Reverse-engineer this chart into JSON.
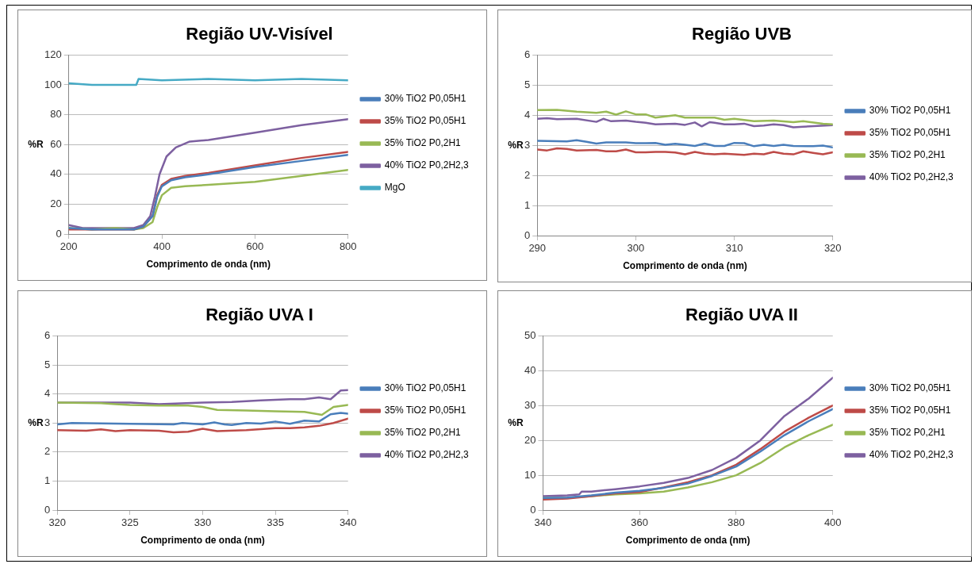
{
  "chart_data": [
    {
      "type": "line",
      "title": "Região UV-Visível",
      "xlabel": "Comprimento de onda (nm)",
      "ylabel": "%R",
      "xlim": [
        200,
        800
      ],
      "xticks": [
        200,
        400,
        600,
        800
      ],
      "ylim": [
        0,
        120
      ],
      "yticks": [
        0,
        20,
        40,
        60,
        80,
        100,
        120
      ],
      "grid": "y",
      "legend": "right",
      "marker": "none",
      "line_style": "solid",
      "series": [
        {
          "name": "30% TiO2 P0,05H1",
          "color": "#4a7ebb",
          "x": [
            200,
            250,
            300,
            340,
            360,
            380,
            390,
            400,
            420,
            450,
            500,
            600,
            700,
            800
          ],
          "values": [
            4,
            3,
            3,
            3,
            5,
            12,
            25,
            32,
            36,
            38,
            40,
            45,
            49,
            53
          ]
        },
        {
          "name": "35% TiO2 P0,05H1",
          "color": "#be4b48",
          "x": [
            200,
            250,
            300,
            340,
            360,
            380,
            390,
            400,
            420,
            450,
            500,
            600,
            700,
            800
          ],
          "values": [
            3,
            3,
            3,
            3,
            5,
            12,
            26,
            33,
            37,
            39,
            41,
            46,
            51,
            55
          ]
        },
        {
          "name": "35% TiO2 P0,2H1",
          "color": "#98b954",
          "x": [
            200,
            250,
            300,
            340,
            360,
            380,
            390,
            400,
            420,
            450,
            500,
            600,
            700,
            800
          ],
          "values": [
            4,
            3,
            4,
            3,
            4,
            8,
            18,
            26,
            31,
            32,
            33,
            35,
            39,
            43
          ]
        },
        {
          "name": "40% TiO2 P0,2H2,3",
          "color": "#7d60a0",
          "x": [
            200,
            230,
            300,
            340,
            360,
            375,
            385,
            395,
            410,
            430,
            460,
            500,
            600,
            700,
            800
          ],
          "values": [
            6,
            4,
            4,
            4,
            6,
            12,
            25,
            40,
            52,
            58,
            62,
            63,
            68,
            73,
            77
          ]
        },
        {
          "name": "MgO",
          "color": "#46aac5",
          "x": [
            200,
            250,
            300,
            345,
            350,
            400,
            500,
            600,
            700,
            800
          ],
          "values": [
            101,
            100,
            100,
            100,
            104,
            103,
            104,
            103,
            104,
            103
          ]
        }
      ]
    },
    {
      "type": "line",
      "title": "Região UVB",
      "xlabel": "Comprimento de onda (nm)",
      "ylabel": "%R",
      "xlim": [
        290,
        320
      ],
      "xticks": [
        290,
        300,
        310,
        320
      ],
      "ylim": [
        0,
        6
      ],
      "yticks": [
        0,
        1,
        2,
        3,
        4,
        5,
        6
      ],
      "grid": "y",
      "legend": "right",
      "marker": "none",
      "line_style": "solid",
      "series": [
        {
          "name": "30% TiO2 P0,05H1",
          "color": "#4a7ebb",
          "x": [
            290,
            292,
            293,
            294,
            295,
            296,
            297,
            299,
            300,
            301,
            302,
            303,
            304,
            305,
            306,
            307,
            308,
            309,
            310,
            311,
            312,
            313,
            314,
            315,
            316,
            318,
            319,
            320
          ],
          "values": [
            3.15,
            3.14,
            3.13,
            3.17,
            3.12,
            3.06,
            3.1,
            3.1,
            3.07,
            3.07,
            3.08,
            3.02,
            3.05,
            3.02,
            2.98,
            3.06,
            2.98,
            2.98,
            3.08,
            3.07,
            2.97,
            3.02,
            2.98,
            3.02,
            2.98,
            2.97,
            2.99,
            2.93
          ]
        },
        {
          "name": "35% TiO2 P0,05H1",
          "color": "#be4b48",
          "x": [
            290,
            291,
            292,
            293,
            294,
            296,
            297,
            298,
            299,
            300,
            301,
            302,
            303,
            304,
            305,
            306,
            307,
            308,
            309,
            310,
            311,
            312,
            313,
            314,
            315,
            316,
            317,
            318,
            319,
            320
          ],
          "values": [
            2.86,
            2.83,
            2.9,
            2.88,
            2.83,
            2.85,
            2.8,
            2.8,
            2.86,
            2.77,
            2.77,
            2.78,
            2.78,
            2.76,
            2.7,
            2.78,
            2.72,
            2.7,
            2.72,
            2.7,
            2.68,
            2.72,
            2.7,
            2.78,
            2.72,
            2.7,
            2.8,
            2.75,
            2.7,
            2.77
          ]
        },
        {
          "name": "35% TiO2 P0,2H1",
          "color": "#98b954",
          "x": [
            290,
            292,
            294,
            296,
            297,
            298,
            299,
            300,
            301,
            302,
            304,
            305,
            308,
            309,
            310,
            312,
            314,
            316,
            317,
            319,
            320
          ],
          "values": [
            4.17,
            4.18,
            4.12,
            4.08,
            4.12,
            4.02,
            4.13,
            4.03,
            4.03,
            3.92,
            4.0,
            3.92,
            3.92,
            3.85,
            3.88,
            3.8,
            3.82,
            3.77,
            3.8,
            3.72,
            3.7
          ]
        },
        {
          "name": "40% TiO2 P0,2H2,3",
          "color": "#7d60a0",
          "x": [
            290,
            291,
            292,
            294,
            296,
            296.7,
            297.5,
            299,
            300,
            301,
            302,
            304,
            305,
            306,
            306.7,
            307.5,
            308,
            309,
            310,
            311,
            312,
            313,
            314,
            315,
            316,
            317,
            320
          ],
          "values": [
            3.88,
            3.9,
            3.87,
            3.88,
            3.78,
            3.88,
            3.8,
            3.82,
            3.78,
            3.75,
            3.7,
            3.72,
            3.68,
            3.76,
            3.63,
            3.77,
            3.75,
            3.7,
            3.7,
            3.72,
            3.64,
            3.66,
            3.7,
            3.67,
            3.6,
            3.62,
            3.67
          ]
        }
      ]
    },
    {
      "type": "line",
      "title": "Região UVA I",
      "xlabel": "Comprimento de onda (nm)",
      "ylabel": "%R",
      "xlim": [
        320,
        340
      ],
      "xticks": [
        320,
        325,
        330,
        335,
        340
      ],
      "ylim": [
        0,
        6
      ],
      "yticks": [
        0,
        1,
        2,
        3,
        4,
        5,
        6
      ],
      "grid": "y",
      "legend": "right",
      "marker": "none",
      "line_style": "solid",
      "series": [
        {
          "name": "30% TiO2 P0,05H1",
          "color": "#4a7ebb",
          "x": [
            320,
            321,
            325,
            328,
            328.6,
            330,
            330.8,
            331.5,
            332,
            333,
            334,
            335,
            336,
            337,
            338,
            338.8,
            339.5,
            340
          ],
          "values": [
            2.95,
            3.0,
            2.97,
            2.95,
            3.0,
            2.95,
            3.02,
            2.95,
            2.93,
            3.0,
            2.98,
            3.05,
            2.97,
            3.08,
            3.05,
            3.3,
            3.35,
            3.32
          ]
        },
        {
          "name": "35% TiO2 P0,05H1",
          "color": "#be4b48",
          "x": [
            320,
            322,
            323,
            324,
            325,
            327,
            328,
            329,
            330,
            331,
            333,
            335,
            336,
            337,
            338,
            339,
            340
          ],
          "values": [
            2.75,
            2.73,
            2.78,
            2.72,
            2.75,
            2.73,
            2.68,
            2.7,
            2.8,
            2.72,
            2.75,
            2.82,
            2.82,
            2.85,
            2.9,
            3.0,
            3.15
          ]
        },
        {
          "name": "35% TiO2 P0,2H1",
          "color": "#98b954",
          "x": [
            320,
            323,
            324,
            325,
            327,
            329,
            330,
            331,
            333,
            335,
            337,
            338.2,
            339,
            340
          ],
          "values": [
            3.7,
            3.68,
            3.65,
            3.62,
            3.6,
            3.6,
            3.55,
            3.45,
            3.43,
            3.4,
            3.38,
            3.28,
            3.55,
            3.62
          ]
        },
        {
          "name": "40% TiO2 P0,2H2,3",
          "color": "#7d60a0",
          "x": [
            320,
            325,
            327,
            330,
            332,
            334,
            336,
            337,
            338,
            338.8,
            339.5,
            340
          ],
          "values": [
            3.7,
            3.7,
            3.65,
            3.7,
            3.72,
            3.78,
            3.82,
            3.82,
            3.88,
            3.82,
            4.12,
            4.13
          ]
        }
      ]
    },
    {
      "type": "line",
      "title": "Região UVA II",
      "xlabel": "Comprimento de onda (nm)",
      "ylabel": "%R",
      "xlim": [
        340,
        400
      ],
      "xticks": [
        340,
        360,
        380,
        400
      ],
      "ylim": [
        0,
        50
      ],
      "yticks": [
        0,
        10,
        20,
        30,
        40,
        50
      ],
      "grid": "y",
      "legend": "right",
      "marker": "none",
      "line_style": "solid",
      "series": [
        {
          "name": "30% TiO2 P0,05H1",
          "color": "#4a7ebb",
          "x": [
            340,
            345,
            350,
            355,
            360,
            365,
            370,
            375,
            380,
            385,
            390,
            395,
            400
          ],
          "values": [
            3.5,
            3.6,
            4.2,
            5,
            5.5,
            6.4,
            7.6,
            9.8,
            12.5,
            16.8,
            21.5,
            25.5,
            29
          ]
        },
        {
          "name": "35% TiO2 P0,05H1",
          "color": "#be4b48",
          "x": [
            340,
            345,
            350,
            355,
            360,
            365,
            370,
            375,
            380,
            385,
            390,
            395,
            400
          ],
          "values": [
            3,
            3.3,
            4,
            4.8,
            5.2,
            6.5,
            8,
            10,
            13,
            17.5,
            22.5,
            26.5,
            30
          ]
        },
        {
          "name": "35% TiO2 P0,2H1",
          "color": "#98b954",
          "x": [
            340,
            345,
            350,
            355,
            360,
            365,
            370,
            375,
            380,
            385,
            390,
            395,
            400
          ],
          "values": [
            3.5,
            3.5,
            4,
            4.5,
            4.8,
            5.3,
            6.5,
            8,
            10,
            13.5,
            18,
            21.5,
            24.5
          ]
        },
        {
          "name": "40% TiO2 P0,2H2,3",
          "color": "#7d60a0",
          "x": [
            340,
            345,
            347.5,
            348,
            350,
            355,
            360,
            365,
            370,
            375,
            380,
            385,
            390,
            395,
            400
          ],
          "values": [
            4,
            4.2,
            4.5,
            5.3,
            5.3,
            6,
            6.8,
            7.8,
            9.2,
            11.5,
            15,
            20,
            27,
            32,
            38
          ]
        }
      ]
    }
  ]
}
